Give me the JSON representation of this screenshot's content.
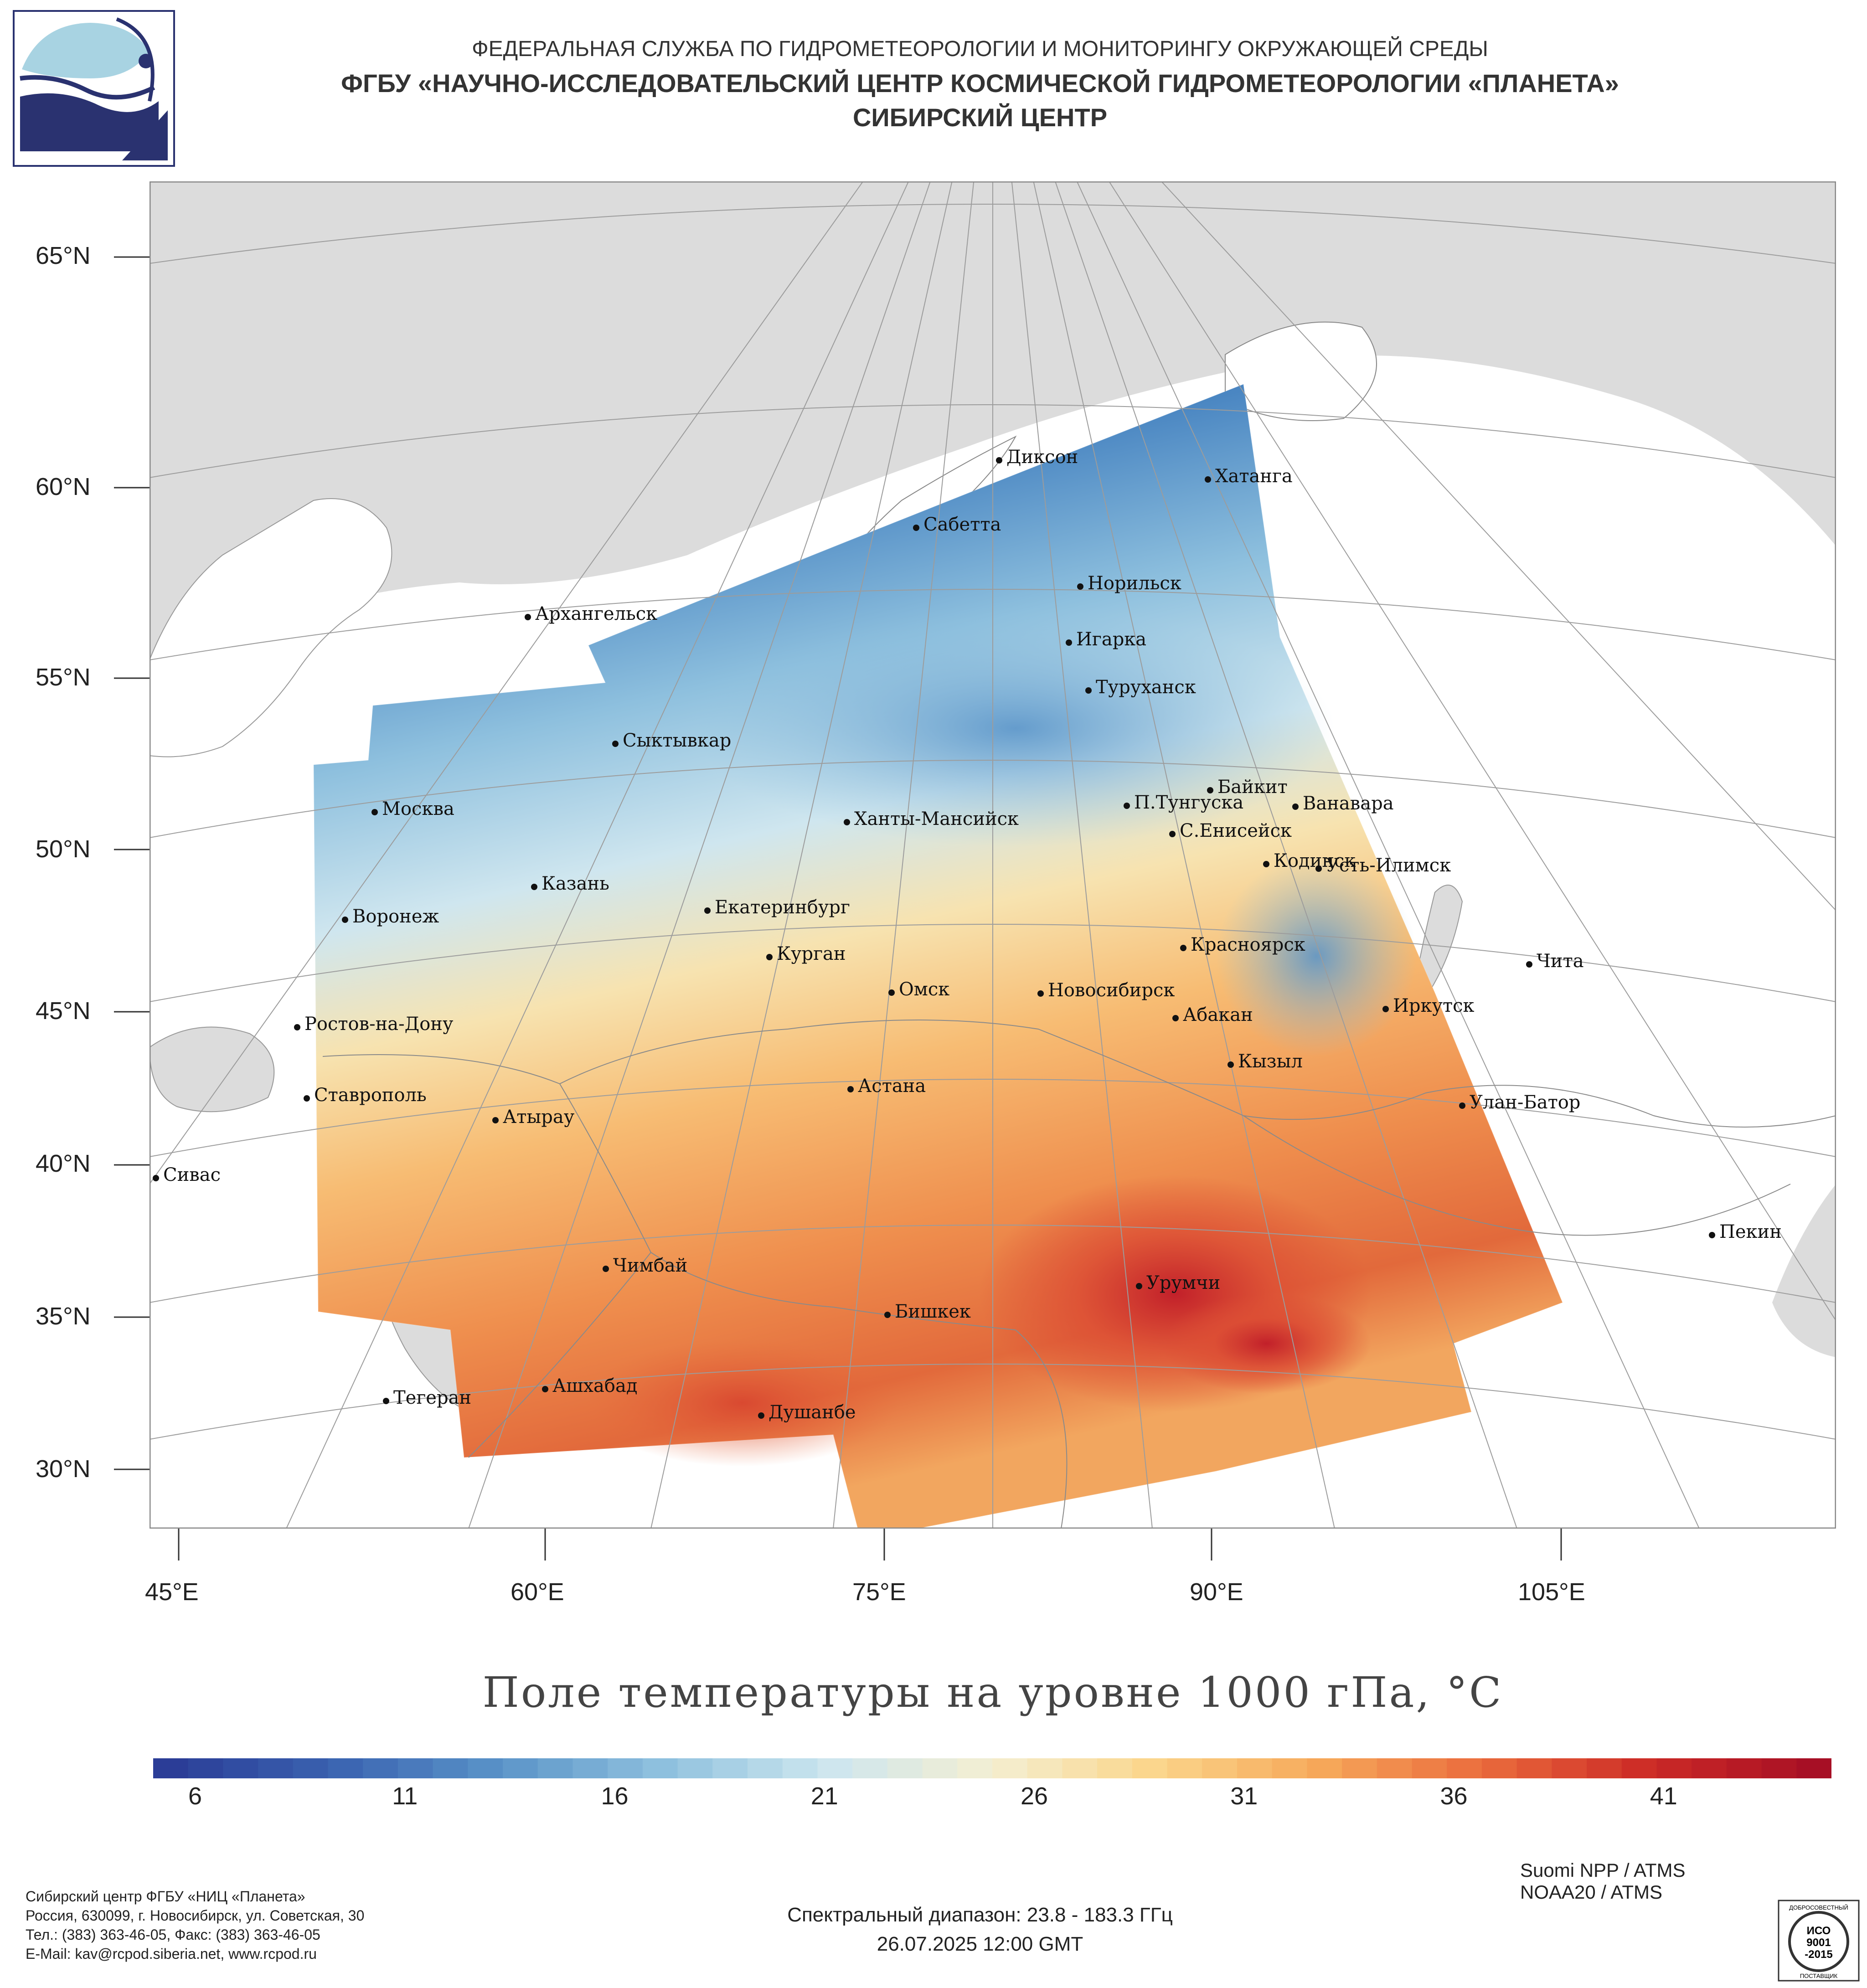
{
  "header": {
    "line1": "ФЕДЕРАЛЬНАЯ СЛУЖБА ПО ГИДРОМЕТЕОРОЛОГИИ И МОНИТОРИНГУ ОКРУЖАЮЩЕЙ СРЕДЫ",
    "line2": "ФГБУ «НАУЧНО-ИССЛЕДОВАТЕЛЬСКИЙ ЦЕНТР КОСМИЧЕСКОЙ ГИДРОМЕТЕОРОЛОГИИ «ПЛАНЕТА»",
    "line3": "СИБИРСКИЙ ЦЕНТР"
  },
  "map": {
    "lat_labels": [
      "65°N",
      "60°N",
      "55°N",
      "50°N",
      "45°N",
      "40°N",
      "35°N",
      "30°N"
    ],
    "lon_labels": [
      "45°E",
      "60°E",
      "75°E",
      "90°E",
      "105°E"
    ],
    "colors": {
      "land": "#ffffff",
      "outside_sea": "#dcdcdc",
      "grid": "#b0b0b0",
      "border": "#9a9a9a"
    },
    "cities": [
      {
        "name": "Диксон"
      },
      {
        "name": "Хатанга"
      },
      {
        "name": "Сабетта"
      },
      {
        "name": "Норильск"
      },
      {
        "name": "Архангельск"
      },
      {
        "name": "Игарка"
      },
      {
        "name": "Туруханск"
      },
      {
        "name": "Сыктывкар"
      },
      {
        "name": "Байкит"
      },
      {
        "name": "Москва"
      },
      {
        "name": "Ханты-Мансийск"
      },
      {
        "name": "П.Тунгуска"
      },
      {
        "name": "Ванавара"
      },
      {
        "name": "С.Енисейск"
      },
      {
        "name": "Кодинск"
      },
      {
        "name": "Усть-Илимск"
      },
      {
        "name": "Казань"
      },
      {
        "name": "Екатеринбург"
      },
      {
        "name": "Воронеж"
      },
      {
        "name": "Красноярск"
      },
      {
        "name": "Курган"
      },
      {
        "name": "Чита"
      },
      {
        "name": "Омск"
      },
      {
        "name": "Новосибирск"
      },
      {
        "name": "Иркутск"
      },
      {
        "name": "Абакан"
      },
      {
        "name": "Ростов-на-Дону"
      },
      {
        "name": "Кызыл"
      },
      {
        "name": "Астана"
      },
      {
        "name": "Ставрополь"
      },
      {
        "name": "Улан-Батор"
      },
      {
        "name": "Атырау"
      },
      {
        "name": "Сивас"
      },
      {
        "name": "Пекин"
      },
      {
        "name": "Чимбай"
      },
      {
        "name": "Урумчи"
      },
      {
        "name": "Бишкек"
      },
      {
        "name": "Ашхабад"
      },
      {
        "name": "Тегеран"
      },
      {
        "name": "Душанбе"
      }
    ]
  },
  "title": "Поле температуры на уровне 1000 гПа, °C",
  "colorbar": {
    "min": 5,
    "max": 45,
    "ticks": [
      "6",
      "11",
      "16",
      "21",
      "26",
      "31",
      "36",
      "41"
    ],
    "tick_values": [
      6,
      11,
      16,
      21,
      26,
      31,
      36,
      41
    ],
    "colors": [
      "#2b3d97",
      "#3a63b0",
      "#5a93c8",
      "#8fc1de",
      "#cde6ef",
      "#f4efd2",
      "#fbd58a",
      "#f6a85a",
      "#ea6a3c",
      "#cc2a26",
      "#a70f25"
    ]
  },
  "footer": {
    "org_lines": [
      "Сибирский центр ФГБУ «НИЦ «Планета»",
      "Россия, 630099, г. Новосибирск, ул. Советская, 30",
      "Тел.: (383) 363-46-05, Факс: (383) 363-46-05",
      "E-Mail: kav@rcpod.siberia.net, www.rcpod.ru"
    ],
    "spectral": "Спектральный диапазон: 23.8 - 183.3 ГГц",
    "datetime": "26.07.2025 12:00 GMT",
    "sat1": "Suomi NPP / ATMS",
    "sat2": "NOAA20 / ATMS",
    "iso_top": "ДОБРОСОВЕСТНЫЙ",
    "iso_mid1": "ИСО",
    "iso_mid2": "9001",
    "iso_mid3": "-2015",
    "iso_bottom": "ПОСТАВЩИК"
  }
}
